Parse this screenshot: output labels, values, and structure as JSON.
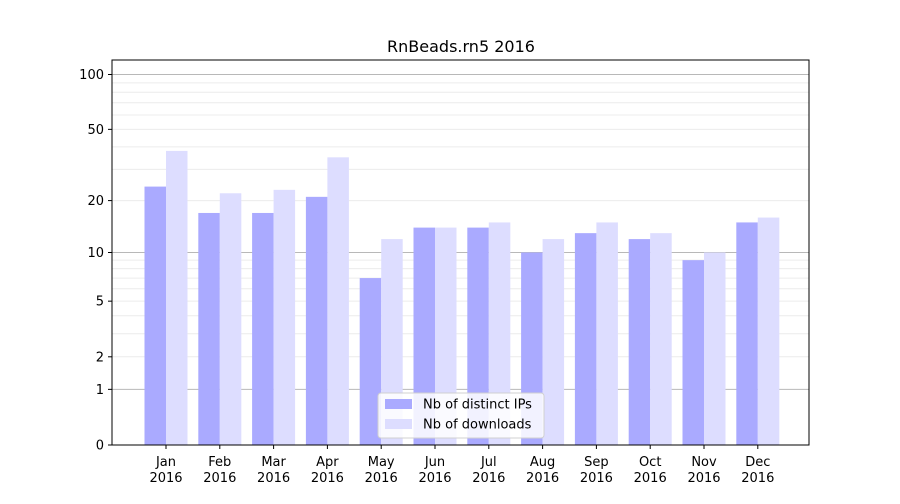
{
  "chart_data": {
    "type": "bar",
    "title": "RnBeads.rn5 2016",
    "xlabel": "",
    "ylabel": "",
    "y_scale": "log(1+y)",
    "ylim": [
      0,
      120
    ],
    "y_ticks": [
      0,
      1,
      2,
      5,
      10,
      20,
      50,
      100
    ],
    "categories": [
      [
        "Jan",
        "2016"
      ],
      [
        "Feb",
        "2016"
      ],
      [
        "Mar",
        "2016"
      ],
      [
        "Apr",
        "2016"
      ],
      [
        "May",
        "2016"
      ],
      [
        "Jun",
        "2016"
      ],
      [
        "Jul",
        "2016"
      ],
      [
        "Aug",
        "2016"
      ],
      [
        "Sep",
        "2016"
      ],
      [
        "Oct",
        "2016"
      ],
      [
        "Nov",
        "2016"
      ],
      [
        "Dec",
        "2016"
      ]
    ],
    "series": [
      {
        "name": "Nb of distinct IPs",
        "color": "#aaaaff",
        "values": [
          24,
          17,
          17,
          21,
          7,
          14,
          14,
          10,
          13,
          12,
          9,
          15
        ]
      },
      {
        "name": "Nb of downloads",
        "color": "#ddddff",
        "values": [
          38,
          22,
          23,
          35,
          12,
          14,
          15,
          12,
          15,
          13,
          10,
          16
        ]
      }
    ],
    "grid": true,
    "legend_position": "bottom-center"
  }
}
